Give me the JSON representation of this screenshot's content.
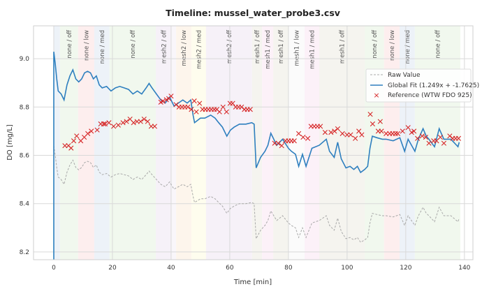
{
  "chart_data": {
    "type": "line",
    "title": "Timeline: mussel_water_probe3.csv",
    "xlabel": "Time [min]",
    "ylabel": "DO [mg/L]",
    "xlim": [
      -6.9,
      142.9
    ],
    "ylim": [
      8.168,
      9.136
    ],
    "xticks": [
      0,
      20,
      40,
      60,
      80,
      100,
      120,
      140
    ],
    "yticks": [
      8.2,
      8.4,
      8.6,
      8.8,
      9.0
    ],
    "ytick_labels": [
      "8.2",
      "8.4",
      "8.6",
      "8.8",
      "9.0"
    ],
    "grid": true,
    "legend_position": "top-right",
    "colors": {
      "raw": "#a9a9a9",
      "fit": "#2e7fbf",
      "reference": "#d62728"
    },
    "bands": [
      {
        "start": 0,
        "end": 2.1,
        "color": "#edf2f8"
      },
      {
        "start": 2.1,
        "end": 8.3,
        "label": "none / off",
        "color": "#f1f8ee"
      },
      {
        "start": 8.3,
        "end": 13.8,
        "label": "none / low",
        "color": "#fdeeee"
      },
      {
        "start": 13.8,
        "end": 19,
        "label": "none / med",
        "color": "#edf2f8"
      },
      {
        "start": 19,
        "end": 34.8,
        "label": "none / off",
        "color": "#f1f8ee"
      },
      {
        "start": 34.8,
        "end": 40.2,
        "label": "mesh2 / off",
        "color": "#f6f1f8"
      },
      {
        "start": 40.2,
        "end": 41.7,
        "color": "#f9f6fa"
      },
      {
        "start": 41.7,
        "end": 46.9,
        "label": "mesh2 / low",
        "color": "#fdf5ec"
      },
      {
        "start": 46.9,
        "end": 51.9,
        "label": "mesh2 / med",
        "color": "#fefdee"
      },
      {
        "start": 51.9,
        "end": 67.6,
        "label": "mesh2 / off",
        "color": "#f6f1f8"
      },
      {
        "start": 67.6,
        "end": 71,
        "label": "mesh1 / off",
        "color": "#f5f4ef"
      },
      {
        "start": 71,
        "end": 74.8,
        "label": "mesh1 / med",
        "color": "#fcf1f8"
      },
      {
        "start": 74.8,
        "end": 80,
        "label": "mesh1 / off",
        "color": "#f5f4ef"
      },
      {
        "start": 80,
        "end": 85.5,
        "label": "mesh1 / low",
        "color": "#fbfbfb"
      },
      {
        "start": 85.5,
        "end": 90.5,
        "label": "mesh1 / med",
        "color": "#fcf1f8"
      },
      {
        "start": 90.5,
        "end": 106,
        "label": "mesh1 / off",
        "color": "#f5f4ef"
      },
      {
        "start": 106,
        "end": 112.6,
        "label": "none / off",
        "color": "#f1f8ee"
      },
      {
        "start": 112.6,
        "end": 117.9,
        "label": "none / low",
        "color": "#fdeeee"
      },
      {
        "start": 117.9,
        "end": 123.1,
        "label": "none / med",
        "color": "#edf2f8"
      },
      {
        "start": 123.1,
        "end": 138.6,
        "label": "none / off",
        "color": "#f1f8ee"
      }
    ],
    "fit": {
      "slope": 1.249,
      "intercept": -1.7625
    },
    "legend": [
      "Raw Value",
      "Global Fit (1.249x + -1.7625)",
      "Reference (WTW FDO 925)"
    ],
    "raw": {
      "x": [
        0,
        0.5,
        1,
        1.5,
        2.5,
        3.5,
        4.5,
        5.5,
        6.5,
        7.5,
        8.5,
        9.5,
        10.5,
        11.5,
        12.5,
        13.5,
        14.5,
        15.5,
        16.5,
        18,
        19.5,
        21,
        22.5,
        24,
        25.5,
        27,
        28.5,
        30,
        31.5,
        32.5,
        33.5,
        35,
        36.5,
        38,
        39.5,
        41,
        42.5,
        44,
        45.5,
        46.7,
        47.5,
        48,
        50,
        51.5,
        53.5,
        55,
        56.2,
        57.5,
        59,
        60.2,
        61.5,
        63.3,
        65.5,
        67.5,
        68.3,
        69,
        70.5,
        72,
        73,
        74,
        75,
        76,
        78,
        80,
        81,
        82.4,
        83.5,
        84.8,
        86,
        88,
        90.5,
        92.9,
        94,
        95.6,
        96.8,
        98,
        99.6,
        101,
        102.3,
        103.5,
        104.6,
        106,
        107,
        107.8,
        108.6,
        110.2,
        112,
        113.3,
        115.7,
        118,
        119.6,
        120.8,
        123.1,
        124.3,
        125.9,
        127,
        127.9,
        129.8,
        131.4,
        133,
        135.4,
        137.8,
        138.2
      ],
      "y": [
        8.64,
        8.6,
        8.55,
        8.51,
        8.5,
        8.48,
        8.53,
        8.56,
        8.58,
        8.55,
        8.54,
        8.55,
        8.57,
        8.575,
        8.57,
        8.55,
        8.56,
        8.53,
        8.52,
        8.525,
        8.51,
        8.52,
        8.525,
        8.52,
        8.515,
        8.5,
        8.51,
        8.5,
        8.52,
        8.535,
        8.52,
        8.5,
        8.48,
        8.47,
        8.49,
        8.46,
        8.47,
        8.48,
        8.47,
        8.48,
        8.43,
        8.405,
        8.42,
        8.42,
        8.43,
        8.42,
        8.405,
        8.39,
        8.36,
        8.38,
        8.39,
        8.4,
        8.4,
        8.405,
        8.4,
        8.255,
        8.29,
        8.31,
        8.33,
        8.37,
        8.35,
        8.33,
        8.35,
        8.32,
        8.31,
        8.3,
        8.26,
        8.3,
        8.26,
        8.32,
        8.33,
        8.35,
        8.31,
        8.29,
        8.34,
        8.285,
        8.255,
        8.26,
        8.25,
        8.26,
        8.24,
        8.25,
        8.26,
        8.32,
        8.36,
        8.355,
        8.35,
        8.35,
        8.345,
        8.355,
        8.31,
        8.35,
        8.31,
        8.35,
        8.385,
        8.36,
        8.35,
        8.325,
        8.385,
        8.35,
        8.35,
        8.325,
        8.34
      ]
    },
    "reference": {
      "x": [
        3.8,
        5,
        5.9,
        6.8,
        7.8,
        9.2,
        10.4,
        11.6,
        12.8,
        14.8,
        16,
        17,
        17.5,
        18.8,
        20.4,
        22,
        23.6,
        24.8,
        26,
        27.2,
        28.4,
        29.6,
        30.8,
        32,
        33.2,
        34.4,
        36.5,
        37.2,
        38.4,
        39.2,
        40,
        41.7,
        42.7,
        43.7,
        44.7,
        45.7,
        46.9,
        47.9,
        48.6,
        49.7,
        50.7,
        51.7,
        52.7,
        53.7,
        54.7,
        55.6,
        56.5,
        57.7,
        58.9,
        60.1,
        61,
        62,
        63,
        64,
        65,
        66,
        67,
        75.3,
        76.5,
        77.7,
        79,
        80,
        81,
        82,
        83.5,
        85,
        86.6,
        87.7,
        88.8,
        89.9,
        90.9,
        92.5,
        94.5,
        95.7,
        96.8,
        98.4,
        100,
        101.2,
        102.8,
        104,
        105,
        107.9,
        108.7,
        110.6,
        111.3,
        111.7,
        113.3,
        114.5,
        115.5,
        116.5,
        117.3,
        118.9,
        120.8,
        122,
        122.8,
        124,
        125.6,
        126.8,
        127.9,
        129.5,
        130.5,
        131.8,
        133,
        135,
        136,
        137,
        138
      ],
      "y": [
        8.64,
        8.64,
        8.63,
        8.66,
        8.68,
        8.66,
        8.675,
        8.69,
        8.7,
        8.705,
        8.73,
        8.73,
        8.73,
        8.735,
        8.72,
        8.725,
        8.735,
        8.74,
        8.75,
        8.735,
        8.74,
        8.74,
        8.75,
        8.74,
        8.72,
        8.72,
        8.82,
        8.824,
        8.83,
        8.835,
        8.845,
        8.81,
        8.8,
        8.8,
        8.8,
        8.8,
        8.79,
        8.825,
        8.78,
        8.815,
        8.79,
        8.79,
        8.79,
        8.79,
        8.79,
        8.79,
        8.78,
        8.8,
        8.78,
        8.815,
        8.815,
        8.8,
        8.8,
        8.8,
        8.79,
        8.79,
        8.79,
        8.65,
        8.65,
        8.64,
        8.66,
        8.66,
        8.66,
        8.66,
        8.69,
        8.675,
        8.67,
        8.72,
        8.72,
        8.72,
        8.72,
        8.695,
        8.695,
        8.7,
        8.71,
        8.69,
        8.685,
        8.685,
        8.67,
        8.7,
        8.685,
        8.77,
        8.73,
        8.7,
        8.74,
        8.7,
        8.69,
        8.69,
        8.69,
        8.69,
        8.69,
        8.7,
        8.715,
        8.695,
        8.7,
        8.67,
        8.68,
        8.675,
        8.65,
        8.66,
        8.66,
        8.675,
        8.65,
        8.68,
        8.67,
        8.67,
        8.67
      ]
    }
  }
}
